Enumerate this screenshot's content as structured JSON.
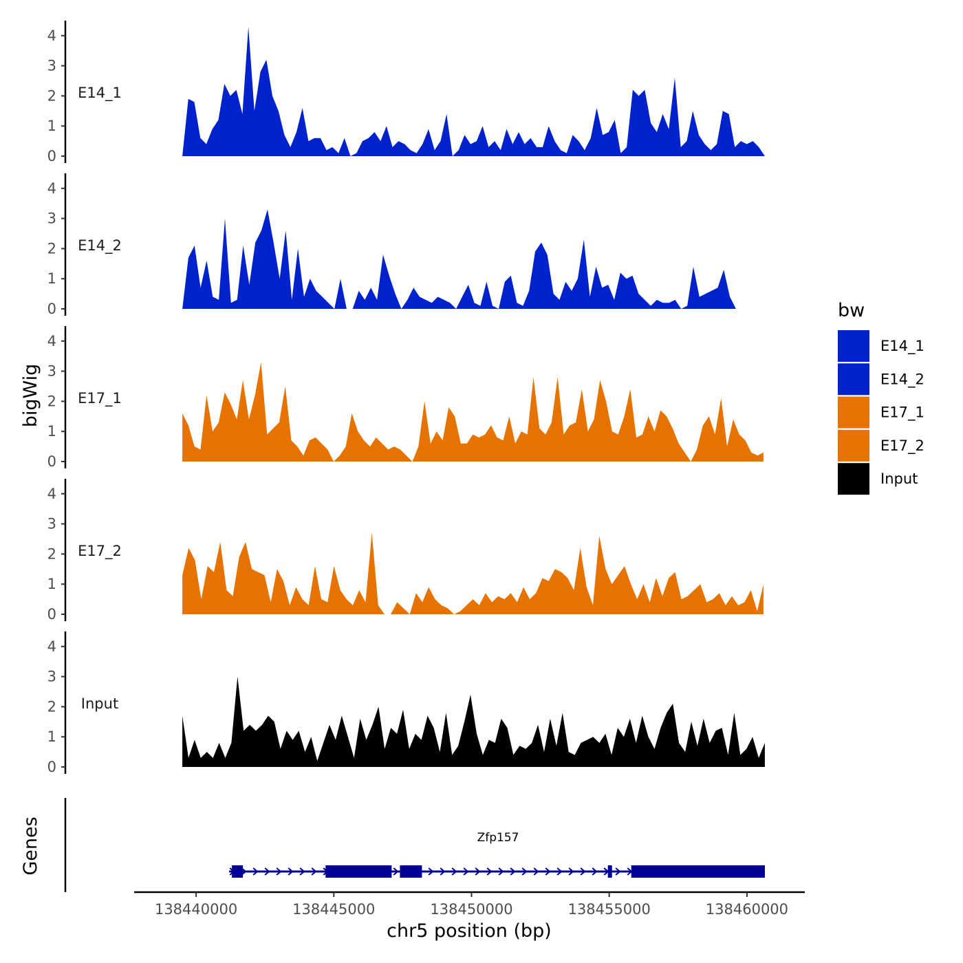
{
  "chart_data": {
    "type": "area",
    "title": "",
    "ylabel": "bigWig",
    "xlabel": "chr5 position (bp)",
    "genes_label": "Genes",
    "xlim": [
      138437750,
      138462100
    ],
    "ylim": [
      0,
      4.5
    ],
    "y_ticks": [
      0,
      1,
      2,
      3,
      4
    ],
    "x_ticks": [
      138440000,
      138445000,
      138450000,
      138455000,
      138460000
    ],
    "x_tick_labels": [
      "138440000",
      "138445000",
      "138450000",
      "138455000",
      "138460000"
    ],
    "legend": {
      "title": "bw",
      "position": "right",
      "entries": [
        {
          "label": "E14_1",
          "color": "#0022CC"
        },
        {
          "label": "E14_2",
          "color": "#0022CC"
        },
        {
          "label": "E17_1",
          "color": "#E67300"
        },
        {
          "label": "E17_2",
          "color": "#E67300"
        },
        {
          "label": "Input",
          "color": "#000000"
        }
      ]
    },
    "series": [
      {
        "name": "E14_1",
        "color": "#0022CC",
        "x_start": 138439500,
        "x_end": 138460650,
        "values": [
          0,
          1.9,
          1.8,
          0.6,
          0.4,
          0.9,
          1.2,
          2.4,
          2.0,
          2.2,
          1.4,
          4.3,
          1.5,
          2.8,
          3.2,
          2.0,
          1.5,
          0.7,
          0.3,
          0.8,
          1.6,
          0.5,
          0.6,
          0.6,
          0.2,
          0.3,
          0.1,
          0.6,
          0,
          0.1,
          0.5,
          0.6,
          0.8,
          0.5,
          1.0,
          0.3,
          0.5,
          0.4,
          0.2,
          0.1,
          0.4,
          0.9,
          0.2,
          0.5,
          1.4,
          0,
          0.2,
          0.7,
          0.4,
          0.5,
          1.0,
          0.3,
          0.5,
          0.2,
          0.9,
          0.4,
          0.8,
          0.4,
          0.6,
          0.3,
          0.3,
          1.0,
          0.5,
          0.2,
          0.1,
          0.7,
          0.5,
          0.2,
          0.6,
          1.6,
          0.7,
          0.8,
          1.2,
          0.1,
          0.3,
          2.2,
          2.0,
          2.2,
          1.1,
          0.8,
          1.4,
          0.9,
          2.6,
          0.3,
          0.5,
          1.5,
          0.7,
          0.4,
          0.2,
          0.4,
          1.5,
          1.4,
          0.3,
          0.5,
          0.4,
          0.5,
          0.3,
          0
        ]
      },
      {
        "name": "E14_2",
        "color": "#0022CC",
        "x_start": 138439500,
        "x_end": 138459600,
        "values": [
          0,
          1.7,
          2.1,
          0.7,
          1.6,
          0.4,
          0.3,
          3.0,
          0.2,
          0.3,
          2.1,
          0.8,
          2.2,
          2.6,
          3.3,
          2.2,
          1.0,
          2.6,
          0.3,
          2.0,
          0.4,
          1.0,
          0.6,
          0.4,
          0.2,
          0,
          1.0,
          0,
          0,
          0.6,
          0.3,
          0.7,
          0.3,
          1.8,
          1.1,
          0.5,
          0,
          0.3,
          0.7,
          0.4,
          0.3,
          0.2,
          0.4,
          0.3,
          0.2,
          0,
          0.4,
          0.8,
          0.2,
          0.1,
          0.9,
          0.1,
          0,
          0.9,
          1.1,
          0.2,
          0.1,
          0.6,
          1.9,
          2.2,
          1.8,
          0.5,
          0.3,
          0.9,
          0.6,
          1.0,
          2.3,
          0.4,
          1.4,
          0.7,
          0.8,
          0.3,
          1.2,
          1.0,
          1.1,
          0.5,
          0.3,
          0.1,
          0.3,
          0.2,
          0.2,
          0.3,
          0,
          0.1,
          1.4,
          0.4,
          0.5,
          0.6,
          0.7,
          1.3,
          0.4,
          0
        ]
      },
      {
        "name": "E17_1",
        "color": "#E67300",
        "x_start": 138439500,
        "x_end": 138460600,
        "values": [
          1.6,
          1.2,
          0.5,
          0.4,
          2.2,
          1.0,
          1.3,
          2.3,
          1.9,
          1.4,
          2.7,
          1.4,
          2.2,
          3.3,
          0.9,
          1.1,
          1.3,
          2.5,
          0.7,
          0.5,
          0.2,
          0.7,
          0.8,
          0.6,
          0.4,
          0,
          0.2,
          0.5,
          1.6,
          1.0,
          0.7,
          0.5,
          0.8,
          0.6,
          0.4,
          0.5,
          0.4,
          0.2,
          0,
          0.5,
          2.0,
          0.6,
          1.0,
          0.7,
          1.8,
          1.5,
          0.6,
          0.6,
          0.9,
          0.8,
          0.9,
          1.2,
          0.8,
          0.7,
          1.5,
          0.6,
          1.0,
          0.9,
          2.8,
          1.1,
          0.9,
          1.3,
          2.8,
          0.9,
          1.2,
          1.3,
          2.4,
          1.0,
          1.4,
          2.7,
          2.0,
          1.0,
          0.9,
          1.5,
          2.4,
          0.8,
          0.9,
          1.5,
          1.0,
          1.7,
          1.5,
          1.1,
          0.6,
          0.3,
          0,
          0.4,
          1.2,
          1.5,
          0.9,
          2.1,
          0.5,
          1.4,
          0.9,
          0.7,
          0.3,
          0.2,
          0.3
        ]
      },
      {
        "name": "E17_2",
        "color": "#E67300",
        "x_start": 138439500,
        "x_end": 138460600,
        "values": [
          1.3,
          2.2,
          1.8,
          0.5,
          1.6,
          1.4,
          2.4,
          0.8,
          0.6,
          1.9,
          2.4,
          1.5,
          1.4,
          1.3,
          0.4,
          1.5,
          1.1,
          0.3,
          0.9,
          0.5,
          0.3,
          1.6,
          0.5,
          0.4,
          1.6,
          0.8,
          0.5,
          0.3,
          0.8,
          0.4,
          2.7,
          0.3,
          0,
          0,
          0.4,
          0.2,
          0,
          0.7,
          0.4,
          0.9,
          0.5,
          0.3,
          0.2,
          0,
          0.1,
          0.3,
          0.5,
          0.3,
          0.7,
          0.4,
          0.6,
          0.5,
          0.7,
          0.4,
          0.9,
          0.5,
          0.7,
          1.2,
          1.1,
          1.5,
          1.4,
          1.2,
          0.8,
          2.2,
          0.9,
          0.3,
          2.6,
          1.5,
          1.0,
          1.3,
          1.6,
          1.0,
          0.5,
          1.0,
          0.4,
          1.2,
          0.6,
          1.2,
          1.4,
          0.5,
          0.6,
          0.8,
          1.0,
          0.4,
          0.5,
          0.7,
          0.3,
          0.6,
          0.3,
          0.4,
          0.8,
          0.1,
          1.0
        ]
      },
      {
        "name": "Input",
        "color": "#000000",
        "x_start": 138439500,
        "x_end": 138460650,
        "values": [
          1.7,
          0.3,
          0.9,
          0.3,
          0.5,
          0.3,
          0.8,
          0.3,
          0.8,
          3.0,
          1.2,
          1.4,
          1.2,
          1.4,
          1.7,
          1.5,
          0.6,
          1.2,
          0.9,
          1.2,
          0.5,
          1.0,
          0.2,
          0.8,
          1.4,
          0.9,
          1.7,
          1.0,
          0.3,
          1.6,
          0.9,
          1.4,
          2.0,
          0.6,
          1.3,
          1.1,
          1.9,
          0.6,
          1.1,
          0.9,
          1.7,
          1.3,
          0.5,
          1.8,
          0.4,
          0.7,
          1.5,
          2.4,
          1.1,
          0.4,
          0.9,
          0.8,
          1.6,
          1.3,
          0.4,
          0.7,
          0.6,
          0.8,
          1.4,
          0.5,
          1.6,
          0.7,
          1.8,
          0.5,
          0.4,
          0.8,
          0.9,
          1.0,
          0.8,
          1.1,
          0.4,
          1.3,
          1.0,
          1.6,
          0.8,
          1.7,
          1.0,
          0.6,
          1.3,
          1.8,
          2.1,
          0.8,
          0.5,
          1.5,
          0.7,
          1.6,
          0.8,
          1.2,
          1.3,
          0.4,
          1.8,
          0.4,
          0.6,
          1.0,
          0.3,
          0.8
        ]
      }
    ],
    "gene_track": {
      "name": "Zfp157",
      "strand": "+",
      "color": "#000099",
      "line": [
        138441200,
        138460650
      ],
      "exons": [
        [
          138441300,
          138441700
        ],
        [
          138444700,
          138447100
        ],
        [
          138447400,
          138448200
        ],
        [
          138454950,
          138455100
        ],
        [
          138455800,
          138460650
        ]
      ]
    }
  }
}
